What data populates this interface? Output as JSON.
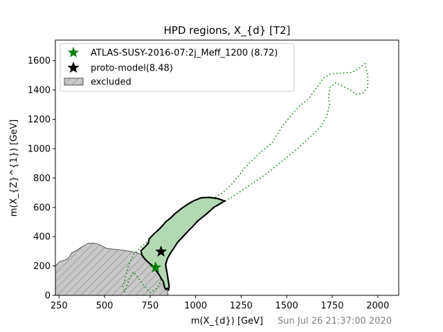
{
  "chart_data": {
    "type": "scatter",
    "title": "HPD regions, X_{d} [T2]",
    "xlabel": "m(X_{d}) [GeV]",
    "ylabel": "m(X_{Z}^{1}) [GeV]",
    "xlim": [
      230,
      2115
    ],
    "ylim": [
      0,
      1740
    ],
    "xticks": [
      250,
      500,
      750,
      1000,
      1250,
      1500,
      1750,
      2000
    ],
    "yticks": [
      0,
      200,
      400,
      600,
      800,
      1000,
      1200,
      1400,
      1600
    ],
    "timestamp": "Sun Jul 26 21:37:00 2020",
    "legend_position": "upper-left",
    "colors": {
      "analysis": "#008000",
      "hpd_fill": "#b3d9b3",
      "hpd_edge": "#000000",
      "excluded_fill": "#c8c8c8",
      "excluded_edge": "#555555",
      "timestamp": "#808080"
    },
    "legend": [
      {
        "label": "ATLAS-SUSY-2016-07:2j_Meff_1200 (8.72)",
        "marker": "green-star"
      },
      {
        "label": "proto-model(8.48)",
        "marker": "black-star"
      },
      {
        "label": "excluded",
        "marker": "hatched-patch"
      }
    ],
    "points": [
      {
        "name": "ATLAS-SUSY-2016-07:2j_Meff_1200",
        "x": 780,
        "y": 190,
        "color": "#008000"
      },
      {
        "name": "proto-model",
        "x": 810,
        "y": 298,
        "color": "#000000"
      }
    ],
    "excluded_region": [
      [
        230,
        0
      ],
      [
        230,
        200
      ],
      [
        255,
        230
      ],
      [
        280,
        240
      ],
      [
        300,
        250
      ],
      [
        320,
        290
      ],
      [
        350,
        310
      ],
      [
        380,
        335
      ],
      [
        410,
        355
      ],
      [
        445,
        355
      ],
      [
        475,
        345
      ],
      [
        510,
        320
      ],
      [
        550,
        315
      ],
      [
        600,
        308
      ],
      [
        640,
        300
      ],
      [
        680,
        290
      ],
      [
        720,
        270
      ],
      [
        760,
        250
      ],
      [
        790,
        230
      ],
      [
        810,
        205
      ],
      [
        825,
        175
      ],
      [
        835,
        140
      ],
      [
        840,
        100
      ],
      [
        840,
        60
      ],
      [
        845,
        25
      ],
      [
        850,
        0
      ]
    ],
    "hpd_region": [
      [
        850,
        30
      ],
      [
        852,
        42
      ],
      [
        844,
        48
      ],
      [
        838,
        40
      ],
      [
        830,
        52
      ],
      [
        822,
        95
      ],
      [
        810,
        118
      ],
      [
        800,
        140
      ],
      [
        785,
        165
      ],
      [
        765,
        200
      ],
      [
        740,
        225
      ],
      [
        720,
        250
      ],
      [
        705,
        275
      ],
      [
        700,
        305
      ],
      [
        722,
        330
      ],
      [
        740,
        355
      ],
      [
        745,
        385
      ],
      [
        772,
        420
      ],
      [
        795,
        445
      ],
      [
        815,
        470
      ],
      [
        835,
        500
      ],
      [
        860,
        525
      ],
      [
        885,
        555
      ],
      [
        920,
        590
      ],
      [
        955,
        620
      ],
      [
        990,
        645
      ],
      [
        1030,
        665
      ],
      [
        1075,
        668
      ],
      [
        1120,
        660
      ],
      [
        1160,
        643
      ],
      [
        1100,
        600
      ],
      [
        1060,
        555
      ],
      [
        1010,
        505
      ],
      [
        985,
        470
      ],
      [
        960,
        440
      ],
      [
        930,
        400
      ],
      [
        900,
        360
      ],
      [
        880,
        320
      ],
      [
        860,
        285
      ],
      [
        845,
        250
      ],
      [
        835,
        210
      ],
      [
        840,
        175
      ],
      [
        845,
        140
      ],
      [
        850,
        100
      ],
      [
        855,
        60
      ]
    ],
    "analysis_dotted_contour": [
      [
        610,
        100
      ],
      [
        630,
        200
      ],
      [
        660,
        280
      ],
      [
        720,
        350
      ],
      [
        800,
        420
      ],
      [
        880,
        490
      ],
      [
        960,
        570
      ],
      [
        1040,
        630
      ],
      [
        1110,
        670
      ],
      [
        1150,
        700
      ],
      [
        1200,
        760
      ],
      [
        1240,
        820
      ],
      [
        1270,
        870
      ],
      [
        1310,
        920
      ],
      [
        1360,
        980
      ],
      [
        1420,
        1040
      ],
      [
        1450,
        1100
      ],
      [
        1480,
        1160
      ],
      [
        1520,
        1220
      ],
      [
        1570,
        1290
      ],
      [
        1620,
        1340
      ],
      [
        1650,
        1390
      ],
      [
        1680,
        1440
      ],
      [
        1700,
        1480
      ],
      [
        1740,
        1510
      ],
      [
        1800,
        1515
      ],
      [
        1860,
        1520
      ],
      [
        1910,
        1560
      ],
      [
        1930,
        1580
      ],
      [
        1945,
        1500
      ],
      [
        1945,
        1420
      ],
      [
        1920,
        1380
      ],
      [
        1880,
        1370
      ],
      [
        1850,
        1400
      ],
      [
        1800,
        1430
      ],
      [
        1770,
        1450
      ],
      [
        1740,
        1420
      ],
      [
        1730,
        1360
      ],
      [
        1735,
        1300
      ],
      [
        1720,
        1220
      ],
      [
        1680,
        1140
      ],
      [
        1620,
        1070
      ],
      [
        1560,
        1000
      ],
      [
        1500,
        940
      ],
      [
        1440,
        880
      ],
      [
        1380,
        820
      ],
      [
        1320,
        770
      ],
      [
        1260,
        720
      ],
      [
        1200,
        670
      ],
      [
        1140,
        630
      ],
      [
        1080,
        580
      ],
      [
        1020,
        530
      ],
      [
        960,
        470
      ],
      [
        900,
        400
      ],
      [
        860,
        340
      ],
      [
        840,
        280
      ],
      [
        830,
        220
      ],
      [
        820,
        160
      ],
      [
        810,
        110
      ],
      [
        800,
        70
      ],
      [
        780,
        40
      ],
      [
        750,
        20
      ],
      [
        720,
        60
      ],
      [
        690,
        110
      ],
      [
        660,
        160
      ],
      [
        640,
        120
      ],
      [
        620,
        60
      ],
      [
        610,
        20
      ],
      [
        600,
        60
      ]
    ]
  }
}
